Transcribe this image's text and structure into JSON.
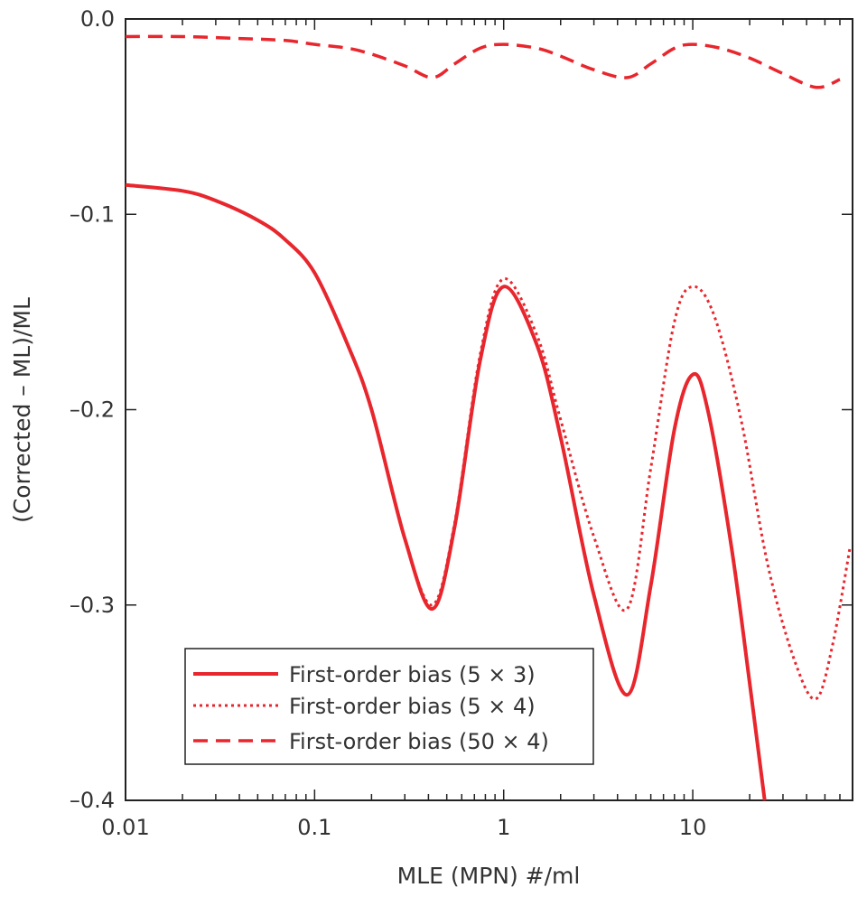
{
  "chart_data": {
    "type": "line",
    "title": "",
    "xlabel": "MLE (MPN) #/ml",
    "ylabel": "(Corrected – ML)/ML",
    "x_scale": "log",
    "xlim": [
      0.01,
      70
    ],
    "ylim": [
      -0.4,
      0.0
    ],
    "x_ticks": [
      0.01,
      0.1,
      1,
      10
    ],
    "x_tick_labels": [
      "0.01",
      "0.1",
      "1",
      "10"
    ],
    "y_ticks": [
      0.0,
      -0.1,
      -0.2,
      -0.3,
      -0.4
    ],
    "y_tick_labels": [
      "0.0",
      "–0.1",
      "–0.2",
      "–0.3",
      "–0.4"
    ],
    "grid": false,
    "legend_position": "bottom-left",
    "color": "#e8262d",
    "series": [
      {
        "name": "First-order bias (5 × 3)",
        "style": "solid",
        "x": [
          0.01,
          0.02,
          0.03,
          0.05,
          0.07,
          0.1,
          0.15,
          0.2,
          0.3,
          0.42,
          0.55,
          0.75,
          1.0,
          1.5,
          2.0,
          3.0,
          4.5,
          6.0,
          8.0,
          10.0,
          12.0,
          16.0,
          20.0,
          24.0
        ],
        "y": [
          -0.085,
          -0.088,
          -0.093,
          -0.103,
          -0.113,
          -0.13,
          -0.167,
          -0.2,
          -0.266,
          -0.302,
          -0.26,
          -0.175,
          -0.137,
          -0.167,
          -0.214,
          -0.295,
          -0.346,
          -0.29,
          -0.21,
          -0.182,
          -0.2,
          -0.27,
          -0.34,
          -0.4
        ]
      },
      {
        "name": "First-order bias (5 × 4)",
        "style": "dotted",
        "x": [
          0.01,
          0.02,
          0.03,
          0.05,
          0.07,
          0.1,
          0.15,
          0.2,
          0.3,
          0.42,
          0.55,
          0.75,
          1.0,
          1.5,
          2.0,
          3.0,
          4.5,
          6.0,
          8.0,
          10.0,
          13.0,
          18.0,
          25.0,
          35.0,
          45.0,
          55.0,
          68.0
        ],
        "y": [
          -0.085,
          -0.088,
          -0.093,
          -0.103,
          -0.113,
          -0.13,
          -0.167,
          -0.2,
          -0.266,
          -0.3,
          -0.258,
          -0.172,
          -0.133,
          -0.162,
          -0.205,
          -0.265,
          -0.302,
          -0.23,
          -0.155,
          -0.137,
          -0.152,
          -0.205,
          -0.28,
          -0.33,
          -0.348,
          -0.32,
          -0.27
        ]
      },
      {
        "name": "First-order bias (50 × 4)",
        "style": "dashed",
        "x": [
          0.01,
          0.02,
          0.04,
          0.07,
          0.1,
          0.15,
          0.2,
          0.3,
          0.42,
          0.55,
          0.75,
          1.0,
          1.5,
          2.0,
          3.0,
          4.5,
          6.0,
          8.0,
          10.0,
          14.0,
          20.0,
          30.0,
          45.0,
          60.0
        ],
        "y": [
          -0.009,
          -0.009,
          -0.01,
          -0.011,
          -0.013,
          -0.015,
          -0.018,
          -0.024,
          -0.03,
          -0.023,
          -0.015,
          -0.013,
          -0.015,
          -0.019,
          -0.026,
          -0.03,
          -0.023,
          -0.015,
          -0.013,
          -0.015,
          -0.02,
          -0.028,
          -0.035,
          -0.031
        ]
      }
    ]
  }
}
